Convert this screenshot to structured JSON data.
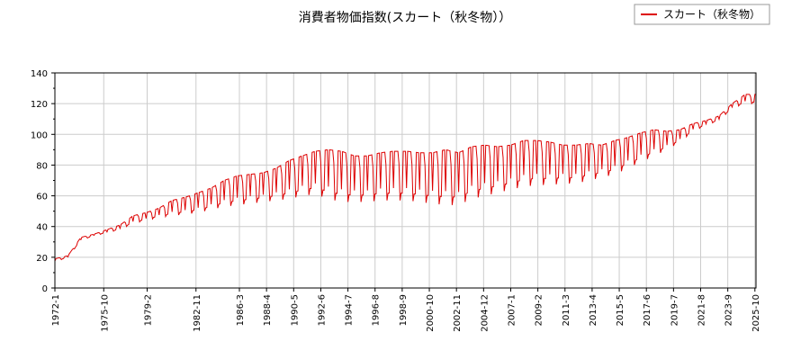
{
  "chart_data": {
    "type": "line",
    "title": "消費者物価指数(スカート（秋冬物））",
    "xlabel": "",
    "ylabel": "",
    "ylim": [
      0,
      140
    ],
    "yticks": [
      0,
      20,
      40,
      60,
      80,
      100,
      120,
      140
    ],
    "xlim": [
      1972.0,
      2025.833
    ],
    "xtick_labels": [
      "1972-1",
      "1975-10",
      "1979-2",
      "1982-11",
      "1986-3",
      "1988-4",
      "1990-5",
      "1992-6",
      "1994-7",
      "1996-8",
      "1998-9",
      "2000-10",
      "2002-11",
      "2004-12",
      "2007-1",
      "2009-2",
      "2011-3",
      "2013-4",
      "2015-5",
      "2017-6",
      "2019-7",
      "2021-8",
      "2023-9",
      "2025-10"
    ],
    "grid": true,
    "legend": {
      "position": "top-right"
    },
    "line_color": "#dd0000",
    "series": [
      {
        "name": "スカート（秋冬物）",
        "seasonal": true,
        "peaks": [
          [
            1972.0,
            19
          ],
          [
            1973.0,
            21
          ],
          [
            1974.0,
            33
          ],
          [
            1975.0,
            35
          ],
          [
            1976.0,
            38
          ],
          [
            1977.0,
            41
          ],
          [
            1978.0,
            47
          ],
          [
            1979.0,
            49
          ],
          [
            1980.0,
            52
          ],
          [
            1981.0,
            57
          ],
          [
            1982.0,
            59
          ],
          [
            1983.0,
            62
          ],
          [
            1984.0,
            65
          ],
          [
            1985.0,
            70
          ],
          [
            1986.0,
            73
          ],
          [
            1987.0,
            74
          ],
          [
            1988.0,
            75
          ],
          [
            1989.0,
            78
          ],
          [
            1990.0,
            83
          ],
          [
            1991.0,
            86
          ],
          [
            1992.0,
            89
          ],
          [
            1993.0,
            90
          ],
          [
            1994.0,
            89
          ],
          [
            1995.0,
            86
          ],
          [
            1996.0,
            86
          ],
          [
            1997.0,
            88
          ],
          [
            1998.0,
            89
          ],
          [
            1999.0,
            89
          ],
          [
            2000.0,
            88
          ],
          [
            2001.0,
            88
          ],
          [
            2002.0,
            90
          ],
          [
            2003.0,
            88
          ],
          [
            2004.0,
            92
          ],
          [
            2005.0,
            93
          ],
          [
            2006.0,
            92
          ],
          [
            2007.0,
            93
          ],
          [
            2008.0,
            96
          ],
          [
            2009.0,
            96
          ],
          [
            2010.0,
            95
          ],
          [
            2011.0,
            93
          ],
          [
            2012.0,
            93
          ],
          [
            2013.0,
            94
          ],
          [
            2014.0,
            93
          ],
          [
            2015.0,
            96
          ],
          [
            2016.0,
            98
          ],
          [
            2017.0,
            101
          ],
          [
            2018.0,
            103
          ],
          [
            2019.0,
            102
          ],
          [
            2020.0,
            103
          ],
          [
            2021.0,
            107
          ],
          [
            2022.0,
            109
          ],
          [
            2023.0,
            112
          ],
          [
            2024.0,
            120
          ],
          [
            2025.0,
            126
          ]
        ],
        "troughs": [
          [
            1972.0,
            17
          ],
          [
            1973.0,
            20
          ],
          [
            1974.0,
            31
          ],
          [
            1975.0,
            34
          ],
          [
            1976.0,
            36
          ],
          [
            1977.0,
            38
          ],
          [
            1978.0,
            42
          ],
          [
            1979.0,
            44
          ],
          [
            1980.0,
            46
          ],
          [
            1981.0,
            47
          ],
          [
            1982.0,
            48
          ],
          [
            1983.0,
            49
          ],
          [
            1984.0,
            51
          ],
          [
            1985.0,
            53
          ],
          [
            1986.0,
            54
          ],
          [
            1987.0,
            55
          ],
          [
            1988.0,
            56
          ],
          [
            1989.0,
            57
          ],
          [
            1990.0,
            58
          ],
          [
            1991.0,
            60
          ],
          [
            1992.0,
            61
          ],
          [
            1993.0,
            58
          ],
          [
            1994.0,
            56
          ],
          [
            1995.0,
            56
          ],
          [
            1996.0,
            56
          ],
          [
            1997.0,
            57
          ],
          [
            1998.0,
            57
          ],
          [
            1999.0,
            57
          ],
          [
            2000.0,
            56
          ],
          [
            2001.0,
            55
          ],
          [
            2002.0,
            54
          ],
          [
            2003.0,
            54
          ],
          [
            2004.0,
            58
          ],
          [
            2005.0,
            60
          ],
          [
            2006.0,
            62
          ],
          [
            2007.0,
            64
          ],
          [
            2008.0,
            66
          ],
          [
            2009.0,
            67
          ],
          [
            2010.0,
            67
          ],
          [
            2011.0,
            68
          ],
          [
            2012.0,
            68
          ],
          [
            2013.0,
            70
          ],
          [
            2014.0,
            72
          ],
          [
            2015.0,
            74
          ],
          [
            2016.0,
            78
          ],
          [
            2017.0,
            82
          ],
          [
            2018.0,
            86
          ],
          [
            2019.0,
            90
          ],
          [
            2020.0,
            95
          ],
          [
            2021.0,
            102
          ],
          [
            2022.0,
            106
          ],
          [
            2023.0,
            109
          ],
          [
            2024.0,
            117
          ],
          [
            2025.0,
            120
          ]
        ]
      }
    ]
  }
}
